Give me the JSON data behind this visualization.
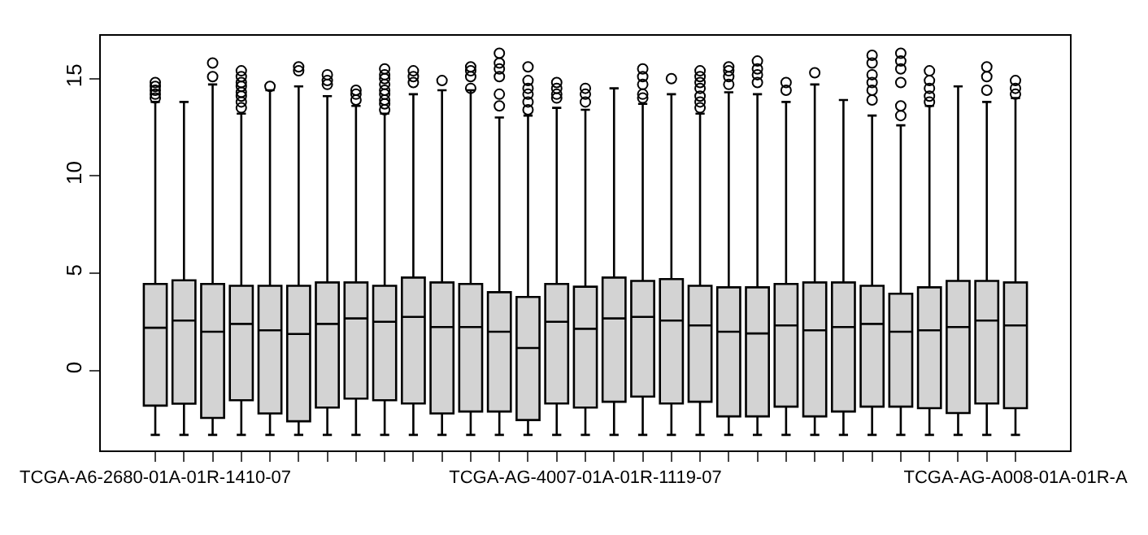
{
  "chart_data": {
    "type": "box",
    "categories": [
      "TCGA-A6-2680-01A-01R-1410-07",
      null,
      null,
      null,
      null,
      null,
      null,
      null,
      null,
      null,
      null,
      null,
      null,
      null,
      null,
      "TCGA-AG-4007-01A-01R-1119-07",
      null,
      null,
      null,
      null,
      null,
      null,
      null,
      null,
      null,
      null,
      null,
      null,
      null,
      null,
      "TCGA-AG-A008-01A-01R-A"
    ],
    "boxes": [
      {
        "low": -3.3,
        "q1": -1.8,
        "median": 2.2,
        "q3": 4.45,
        "high": 13.8,
        "outliers": [
          14.0,
          14.2,
          14.4,
          14.6,
          14.8
        ]
      },
      {
        "low": -3.3,
        "q1": -1.7,
        "median": 2.57,
        "q3": 4.64,
        "high": 13.8
      },
      {
        "low": -3.3,
        "q1": -2.43,
        "median": 2.0,
        "q3": 4.45,
        "high": 14.7,
        "outliers": [
          15.1,
          15.8
        ]
      },
      {
        "low": -3.3,
        "q1": -1.52,
        "median": 2.4,
        "q3": 4.36,
        "high": 13.2,
        "outliers": [
          13.5,
          13.8,
          14.1,
          14.3,
          14.6,
          14.8,
          15.1,
          15.4
        ]
      },
      {
        "low": -3.3,
        "q1": -2.2,
        "median": 2.07,
        "q3": 4.36,
        "high": 14.4,
        "outliers": [
          14.6
        ]
      },
      {
        "low": -3.3,
        "q1": -2.6,
        "median": 1.88,
        "q3": 4.36,
        "high": 14.6,
        "outliers": [
          15.4,
          15.6
        ]
      },
      {
        "low": -3.3,
        "q1": -1.9,
        "median": 2.4,
        "q3": 4.53,
        "high": 14.1,
        "outliers": [
          14.7,
          14.9,
          15.2
        ]
      },
      {
        "low": -3.3,
        "q1": -1.44,
        "median": 2.68,
        "q3": 4.53,
        "high": 13.6,
        "outliers": [
          13.9,
          14.2,
          14.4
        ]
      },
      {
        "low": -3.3,
        "q1": -1.52,
        "median": 2.51,
        "q3": 4.36,
        "high": 13.2,
        "outliers": [
          13.4,
          13.7,
          13.9,
          14.2,
          14.4,
          14.7,
          15.0,
          15.2,
          15.5
        ]
      },
      {
        "low": -3.3,
        "q1": -1.69,
        "median": 2.76,
        "q3": 4.78,
        "high": 14.2,
        "outliers": [
          14.8,
          15.1,
          15.4
        ]
      },
      {
        "low": -3.3,
        "q1": -2.2,
        "median": 2.24,
        "q3": 4.53,
        "high": 14.4,
        "outliers": [
          14.9
        ]
      },
      {
        "low": -3.3,
        "q1": -2.1,
        "median": 2.24,
        "q3": 4.45,
        "high": 14.4,
        "outliers": [
          14.5,
          15.1,
          15.4,
          15.6
        ]
      },
      {
        "low": -3.3,
        "q1": -2.1,
        "median": 2.0,
        "q3": 4.03,
        "high": 13.0,
        "outliers": [
          13.6,
          14.2,
          15.1,
          15.5,
          15.8,
          16.3
        ]
      },
      {
        "low": -3.3,
        "q1": -2.54,
        "median": 1.16,
        "q3": 3.78,
        "high": 13.1,
        "outliers": [
          13.4,
          13.8,
          14.2,
          14.5,
          14.9,
          15.6
        ]
      },
      {
        "low": -3.3,
        "q1": -1.69,
        "median": 2.51,
        "q3": 4.45,
        "high": 13.5,
        "outliers": [
          14.0,
          14.2,
          14.5,
          14.8
        ]
      },
      {
        "low": -3.3,
        "q1": -1.9,
        "median": 2.15,
        "q3": 4.31,
        "high": 13.4,
        "outliers": [
          13.8,
          14.2,
          14.5
        ]
      },
      {
        "low": -3.3,
        "q1": -1.6,
        "median": 2.68,
        "q3": 4.78,
        "high": 14.5
      },
      {
        "low": -3.3,
        "q1": -1.33,
        "median": 2.76,
        "q3": 4.61,
        "high": 13.7,
        "outliers": [
          14.0,
          14.2,
          14.7,
          15.1,
          15.5
        ]
      },
      {
        "low": -3.3,
        "q1": -1.69,
        "median": 2.57,
        "q3": 4.7,
        "high": 14.2,
        "outliers": [
          15.0
        ]
      },
      {
        "low": -3.3,
        "q1": -1.6,
        "median": 2.32,
        "q3": 4.36,
        "high": 13.2,
        "outliers": [
          13.5,
          13.8,
          14.1,
          14.5,
          14.8,
          15.1,
          15.4
        ]
      },
      {
        "low": -3.3,
        "q1": -2.35,
        "median": 2.0,
        "q3": 4.28,
        "high": 14.3,
        "outliers": [
          14.7,
          15.1,
          15.4,
          15.6
        ]
      },
      {
        "low": -3.3,
        "q1": -2.35,
        "median": 1.91,
        "q3": 4.28,
        "high": 14.2,
        "outliers": [
          14.8,
          15.2,
          15.5,
          15.9
        ]
      },
      {
        "low": -3.3,
        "q1": -1.85,
        "median": 2.32,
        "q3": 4.45,
        "high": 13.8,
        "outliers": [
          14.4,
          14.8
        ]
      },
      {
        "low": -3.3,
        "q1": -2.35,
        "median": 2.07,
        "q3": 4.53,
        "high": 14.7,
        "outliers": [
          15.3
        ]
      },
      {
        "low": -3.3,
        "q1": -2.1,
        "median": 2.24,
        "q3": 4.53,
        "high": 13.9
      },
      {
        "low": -3.3,
        "q1": -1.85,
        "median": 2.4,
        "q3": 4.36,
        "high": 13.1,
        "outliers": [
          13.9,
          14.4,
          14.8,
          15.2,
          15.8,
          16.2
        ]
      },
      {
        "low": -3.3,
        "q1": -1.85,
        "median": 2.0,
        "q3": 3.95,
        "high": 12.6,
        "outliers": [
          13.1,
          13.6,
          14.8,
          15.5,
          15.9,
          16.3
        ]
      },
      {
        "low": -3.3,
        "q1": -1.93,
        "median": 2.07,
        "q3": 4.28,
        "high": 13.6,
        "outliers": [
          13.8,
          14.1,
          14.5,
          14.9,
          15.4
        ]
      },
      {
        "low": -3.3,
        "q1": -2.18,
        "median": 2.24,
        "q3": 4.61,
        "high": 14.6
      },
      {
        "low": -3.3,
        "q1": -1.69,
        "median": 2.57,
        "q3": 4.61,
        "high": 13.8,
        "outliers": [
          14.4,
          15.1,
          15.6
        ]
      },
      {
        "low": -3.3,
        "q1": -1.93,
        "median": 2.32,
        "q3": 4.53,
        "high": 14.0,
        "outliers": [
          14.2,
          14.5,
          14.9
        ]
      }
    ],
    "color": "#d3d3d3",
    "ylim": [
      -4.1,
      17.2
    ],
    "yticks": [
      0,
      5,
      10,
      15
    ]
  }
}
